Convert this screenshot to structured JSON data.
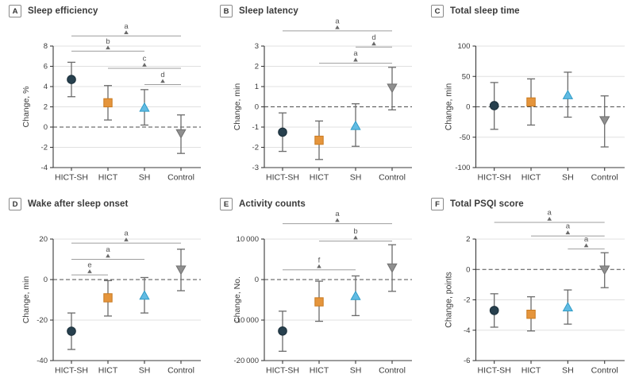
{
  "style": {
    "background": "#ffffff",
    "grid_color": "#e0e0e0",
    "zero_line_color": "#4d4d4d",
    "axis_color": "#3a3a3a",
    "error_bar_color": "#6b6b6b",
    "bracket_line_color": "#9e9e9e",
    "bracket_marker_color": "#6a6a6a",
    "bracket_text_color": "#555555",
    "text_color": "#3a3a3a"
  },
  "groups": [
    {
      "label": "HICT-SH",
      "marker": "circle",
      "color": "#27404e",
      "edge": "#1b2f3a"
    },
    {
      "label": "HICT",
      "marker": "square",
      "color": "#e5953c",
      "edge": "#c97a20"
    },
    {
      "label": "SH",
      "marker": "triangle-up",
      "color": "#61bbe3",
      "edge": "#2f9cc7"
    },
    {
      "label": "Control",
      "marker": "triangle-down",
      "color": "#8f8f8f",
      "edge": "#707070"
    }
  ],
  "chart_data": [
    {
      "panel": "A",
      "title": "Sleep efficiency",
      "type": "scatter",
      "ylabel": "Change, %",
      "ylim": [
        -4,
        8
      ],
      "yticks": [
        {
          "v": 8,
          "label": "8"
        },
        {
          "v": 6,
          "label": "6"
        },
        {
          "v": 4,
          "label": "4"
        },
        {
          "v": 2,
          "label": "2"
        },
        {
          "v": 0,
          "label": "0"
        },
        {
          "v": -2,
          "label": "-2"
        },
        {
          "v": -4,
          "label": "-4"
        }
      ],
      "categories": [
        "HICT-SH",
        "HICT",
        "SH",
        "Control"
      ],
      "points": [
        {
          "value": 4.7,
          "ci": [
            3.0,
            6.4
          ]
        },
        {
          "value": 2.4,
          "ci": [
            0.7,
            4.1
          ]
        },
        {
          "value": 1.9,
          "ci": [
            0.2,
            3.7
          ]
        },
        {
          "value": -0.6,
          "ci": [
            -2.6,
            1.2
          ]
        }
      ],
      "brackets": [
        {
          "label": "a",
          "from": 0,
          "to": 3,
          "y": 9.0
        },
        {
          "label": "b",
          "from": 0,
          "to": 2,
          "y": 7.5
        },
        {
          "label": "c",
          "from": 1,
          "to": 3,
          "y": 5.8
        },
        {
          "label": "d",
          "from": 2,
          "to": 3,
          "y": 4.2
        }
      ]
    },
    {
      "panel": "B",
      "title": "Sleep latency",
      "type": "scatter",
      "ylabel": "Change, min",
      "ylim": [
        -3,
        3
      ],
      "yticks": [
        {
          "v": 3,
          "label": "3"
        },
        {
          "v": 2,
          "label": "2"
        },
        {
          "v": 1,
          "label": "1"
        },
        {
          "v": 0,
          "label": "0"
        },
        {
          "v": -1,
          "label": "-1"
        },
        {
          "v": -2,
          "label": "-2"
        },
        {
          "v": -3,
          "label": "-3"
        }
      ],
      "categories": [
        "HICT-SH",
        "HICT",
        "SH",
        "Control"
      ],
      "points": [
        {
          "value": -1.25,
          "ci": [
            -2.2,
            -0.3
          ]
        },
        {
          "value": -1.65,
          "ci": [
            -2.6,
            -0.7
          ]
        },
        {
          "value": -0.95,
          "ci": [
            -1.95,
            0.15
          ]
        },
        {
          "value": 0.95,
          "ci": [
            -0.15,
            1.95
          ]
        }
      ],
      "brackets": [
        {
          "label": "a",
          "from": 0,
          "to": 3,
          "y": 3.75
        },
        {
          "label": "d",
          "from": 2,
          "to": 3,
          "y": 2.95
        },
        {
          "label": "a",
          "from": 1,
          "to": 3,
          "y": 2.15
        }
      ]
    },
    {
      "panel": "C",
      "title": "Total sleep time",
      "type": "scatter",
      "ylabel": "Change, min",
      "ylim": [
        -100,
        100
      ],
      "yticks": [
        {
          "v": 100,
          "label": "100"
        },
        {
          "v": 50,
          "label": "50"
        },
        {
          "v": 0,
          "label": "0"
        },
        {
          "v": -50,
          "label": "-50"
        },
        {
          "v": -100,
          "label": "-100"
        }
      ],
      "categories": [
        "HICT-SH",
        "HICT",
        "SH",
        "Control"
      ],
      "points": [
        {
          "value": 2,
          "ci": [
            -37,
            40
          ]
        },
        {
          "value": 8,
          "ci": [
            -30,
            46
          ]
        },
        {
          "value": 19,
          "ci": [
            -17,
            57
          ]
        },
        {
          "value": -22,
          "ci": [
            -66,
            18
          ]
        }
      ],
      "brackets": []
    },
    {
      "panel": "D",
      "title": "Wake after sleep onset",
      "type": "scatter",
      "ylabel": "Change, min",
      "ylim": [
        -40,
        20
      ],
      "yticks": [
        {
          "v": 20,
          "label": "20"
        },
        {
          "v": 0,
          "label": "0"
        },
        {
          "v": -20,
          "label": "-20"
        },
        {
          "v": -40,
          "label": "-40"
        }
      ],
      "categories": [
        "HICT-SH",
        "HICT",
        "SH",
        "Control"
      ],
      "points": [
        {
          "value": -25.5,
          "ci": [
            -34.5,
            -16.5
          ]
        },
        {
          "value": -9,
          "ci": [
            -18,
            -0.5
          ]
        },
        {
          "value": -8,
          "ci": [
            -16.5,
            1
          ]
        },
        {
          "value": 5,
          "ci": [
            -5.5,
            15
          ]
        }
      ],
      "brackets": [
        {
          "label": "a",
          "from": 0,
          "to": 3,
          "y": 18
        },
        {
          "label": "a",
          "from": 0,
          "to": 2,
          "y": 10
        },
        {
          "label": "e",
          "from": 0,
          "to": 1,
          "y": 2.3
        }
      ]
    },
    {
      "panel": "E",
      "title": "Activity counts",
      "type": "scatter",
      "ylabel": "Change, No.",
      "ylim": [
        -20000,
        10000
      ],
      "yticks": [
        {
          "v": 10000,
          "label": "10 000"
        },
        {
          "v": 0,
          "label": "0"
        },
        {
          "v": -10000,
          "label": "-10 000"
        },
        {
          "v": -20000,
          "label": "-20 000"
        }
      ],
      "categories": [
        "HICT-SH",
        "HICT",
        "SH",
        "Control"
      ],
      "points": [
        {
          "value": -12700,
          "ci": [
            -17700,
            -7800
          ]
        },
        {
          "value": -5500,
          "ci": [
            -10300,
            -400
          ]
        },
        {
          "value": -4100,
          "ci": [
            -8900,
            900
          ]
        },
        {
          "value": 3000,
          "ci": [
            -2900,
            8600
          ]
        }
      ],
      "brackets": [
        {
          "label": "a",
          "from": 0,
          "to": 3,
          "y": 13800
        },
        {
          "label": "b",
          "from": 1,
          "to": 3,
          "y": 9500
        },
        {
          "label": "f",
          "from": 0,
          "to": 2,
          "y": 2400
        }
      ]
    },
    {
      "panel": "F",
      "title": "Total PSQI score",
      "type": "scatter",
      "ylabel": "Change, points",
      "ylim": [
        -6,
        2
      ],
      "yticks": [
        {
          "v": 2,
          "label": "2"
        },
        {
          "v": 0,
          "label": "0"
        },
        {
          "v": -2,
          "label": "-2"
        },
        {
          "v": -4,
          "label": "-4"
        },
        {
          "v": -6,
          "label": "-6"
        }
      ],
      "categories": [
        "HICT-SH",
        "HICT",
        "SH",
        "Control"
      ],
      "points": [
        {
          "value": -2.7,
          "ci": [
            -3.8,
            -1.6
          ]
        },
        {
          "value": -2.95,
          "ci": [
            -4.05,
            -1.8
          ]
        },
        {
          "value": -2.5,
          "ci": [
            -3.6,
            -1.35
          ]
        },
        {
          "value": 0.0,
          "ci": [
            -1.2,
            1.1
          ]
        }
      ],
      "brackets": [
        {
          "label": "a",
          "from": 0,
          "to": 3,
          "y": 3.1
        },
        {
          "label": "a",
          "from": 1,
          "to": 3,
          "y": 2.2
        },
        {
          "label": "a",
          "from": 2,
          "to": 3,
          "y": 1.35
        }
      ]
    }
  ]
}
